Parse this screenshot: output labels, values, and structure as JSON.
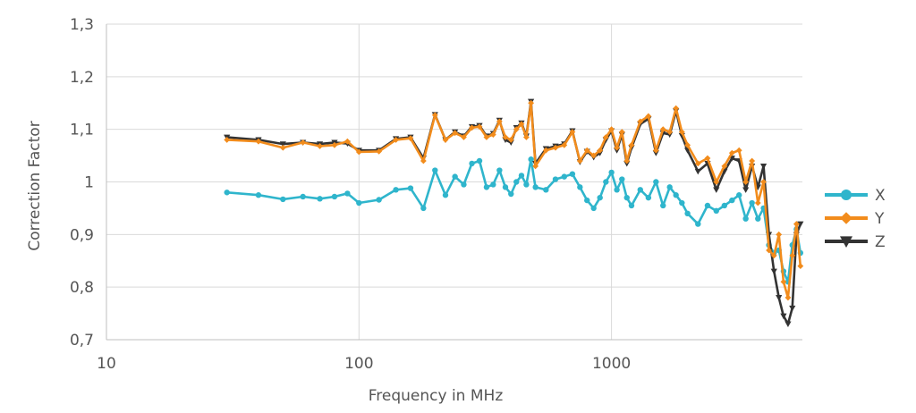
{
  "chart_data": {
    "type": "line",
    "title": "",
    "xlabel": "Frequency in MHz",
    "ylabel": "Correction Factor",
    "x_scale": "log",
    "xlim": [
      10,
      5700
    ],
    "ylim": [
      0.7,
      1.3
    ],
    "x_ticks": [
      10,
      100,
      1000
    ],
    "x_tick_labels": [
      "10",
      "100",
      "1000"
    ],
    "y_ticks": [
      0.7,
      0.8,
      0.9,
      1.0,
      1.1,
      1.2,
      1.3
    ],
    "y_tick_labels": [
      "0,7",
      "0,8",
      "0,9",
      "1",
      "1,1",
      "1,2",
      "1,3"
    ],
    "grid": true,
    "legend_position": "right",
    "series": [
      {
        "name": "X",
        "color": "#2fb5cc",
        "marker": "circle",
        "x": [
          30,
          40,
          50,
          60,
          70,
          80,
          90,
          100,
          120,
          140,
          160,
          180,
          200,
          220,
          240,
          260,
          280,
          300,
          320,
          340,
          360,
          380,
          400,
          420,
          440,
          460,
          480,
          500,
          550,
          600,
          650,
          700,
          750,
          800,
          850,
          900,
          950,
          1000,
          1050,
          1100,
          1150,
          1200,
          1300,
          1400,
          1500,
          1600,
          1700,
          1800,
          1900,
          2000,
          2200,
          2400,
          2600,
          2800,
          3000,
          3200,
          3400,
          3600,
          3800,
          4000,
          4200,
          4400,
          4600,
          4800,
          5000,
          5200,
          5400,
          5600
        ],
        "values": [
          0.98,
          0.975,
          0.967,
          0.972,
          0.968,
          0.972,
          0.978,
          0.96,
          0.966,
          0.985,
          0.988,
          0.95,
          1.022,
          0.975,
          1.01,
          0.995,
          1.035,
          1.04,
          0.99,
          0.995,
          1.022,
          0.99,
          0.977,
          1.0,
          1.012,
          0.995,
          1.043,
          0.99,
          0.985,
          1.005,
          1.01,
          1.015,
          0.99,
          0.965,
          0.95,
          0.97,
          1.0,
          1.018,
          0.985,
          1.005,
          0.97,
          0.955,
          0.985,
          0.97,
          1.0,
          0.955,
          0.99,
          0.975,
          0.96,
          0.94,
          0.92,
          0.955,
          0.945,
          0.955,
          0.965,
          0.975,
          0.93,
          0.96,
          0.93,
          0.95,
          0.88,
          0.865,
          0.87,
          0.83,
          0.81,
          0.88,
          0.91,
          0.865
        ]
      },
      {
        "name": "Y",
        "color": "#f28c1c",
        "marker": "diamond",
        "x": [
          30,
          40,
          50,
          60,
          70,
          80,
          90,
          100,
          120,
          140,
          160,
          180,
          200,
          220,
          240,
          260,
          280,
          300,
          320,
          340,
          360,
          380,
          400,
          420,
          440,
          460,
          480,
          500,
          550,
          600,
          650,
          700,
          750,
          800,
          850,
          900,
          950,
          1000,
          1050,
          1100,
          1150,
          1200,
          1300,
          1400,
          1500,
          1600,
          1700,
          1800,
          1900,
          2000,
          2200,
          2400,
          2600,
          2800,
          3000,
          3200,
          3400,
          3600,
          3800,
          4000,
          4200,
          4400,
          4600,
          4800,
          5000,
          5200,
          5400,
          5600
        ],
        "values": [
          1.08,
          1.077,
          1.065,
          1.075,
          1.068,
          1.07,
          1.077,
          1.057,
          1.058,
          1.08,
          1.083,
          1.04,
          1.127,
          1.08,
          1.093,
          1.085,
          1.103,
          1.105,
          1.085,
          1.09,
          1.115,
          1.085,
          1.08,
          1.1,
          1.11,
          1.085,
          1.15,
          1.03,
          1.06,
          1.065,
          1.07,
          1.095,
          1.04,
          1.06,
          1.05,
          1.06,
          1.085,
          1.1,
          1.065,
          1.095,
          1.04,
          1.07,
          1.115,
          1.125,
          1.06,
          1.1,
          1.095,
          1.14,
          1.095,
          1.07,
          1.035,
          1.045,
          1.0,
          1.03,
          1.055,
          1.06,
          1.0,
          1.04,
          0.96,
          1.0,
          0.87,
          0.86,
          0.9,
          0.81,
          0.78,
          0.86,
          0.92,
          0.84
        ]
      },
      {
        "name": "Z",
        "color": "#333333",
        "marker": "triangle-down",
        "x": [
          30,
          40,
          50,
          60,
          70,
          80,
          90,
          100,
          120,
          140,
          160,
          180,
          200,
          220,
          240,
          260,
          280,
          300,
          320,
          340,
          360,
          380,
          400,
          420,
          440,
          460,
          480,
          500,
          550,
          600,
          650,
          700,
          750,
          800,
          850,
          900,
          950,
          1000,
          1050,
          1100,
          1150,
          1200,
          1300,
          1400,
          1500,
          1600,
          1700,
          1800,
          1900,
          2000,
          2200,
          2400,
          2600,
          2800,
          3000,
          3200,
          3400,
          3600,
          3800,
          4000,
          4200,
          4400,
          4600,
          4800,
          5000,
          5200,
          5400,
          5600
        ],
        "values": [
          1.085,
          1.08,
          1.072,
          1.075,
          1.072,
          1.075,
          1.073,
          1.06,
          1.06,
          1.082,
          1.085,
          1.045,
          1.128,
          1.08,
          1.095,
          1.087,
          1.105,
          1.107,
          1.087,
          1.092,
          1.117,
          1.08,
          1.075,
          1.103,
          1.112,
          1.087,
          1.153,
          1.035,
          1.063,
          1.068,
          1.072,
          1.097,
          1.038,
          1.058,
          1.047,
          1.055,
          1.08,
          1.097,
          1.06,
          1.09,
          1.035,
          1.065,
          1.11,
          1.12,
          1.055,
          1.093,
          1.09,
          1.135,
          1.088,
          1.06,
          1.02,
          1.035,
          0.985,
          1.02,
          1.045,
          1.04,
          0.985,
          1.03,
          0.99,
          1.03,
          0.9,
          0.83,
          0.78,
          0.745,
          0.73,
          0.76,
          0.9,
          0.92
        ]
      }
    ]
  }
}
